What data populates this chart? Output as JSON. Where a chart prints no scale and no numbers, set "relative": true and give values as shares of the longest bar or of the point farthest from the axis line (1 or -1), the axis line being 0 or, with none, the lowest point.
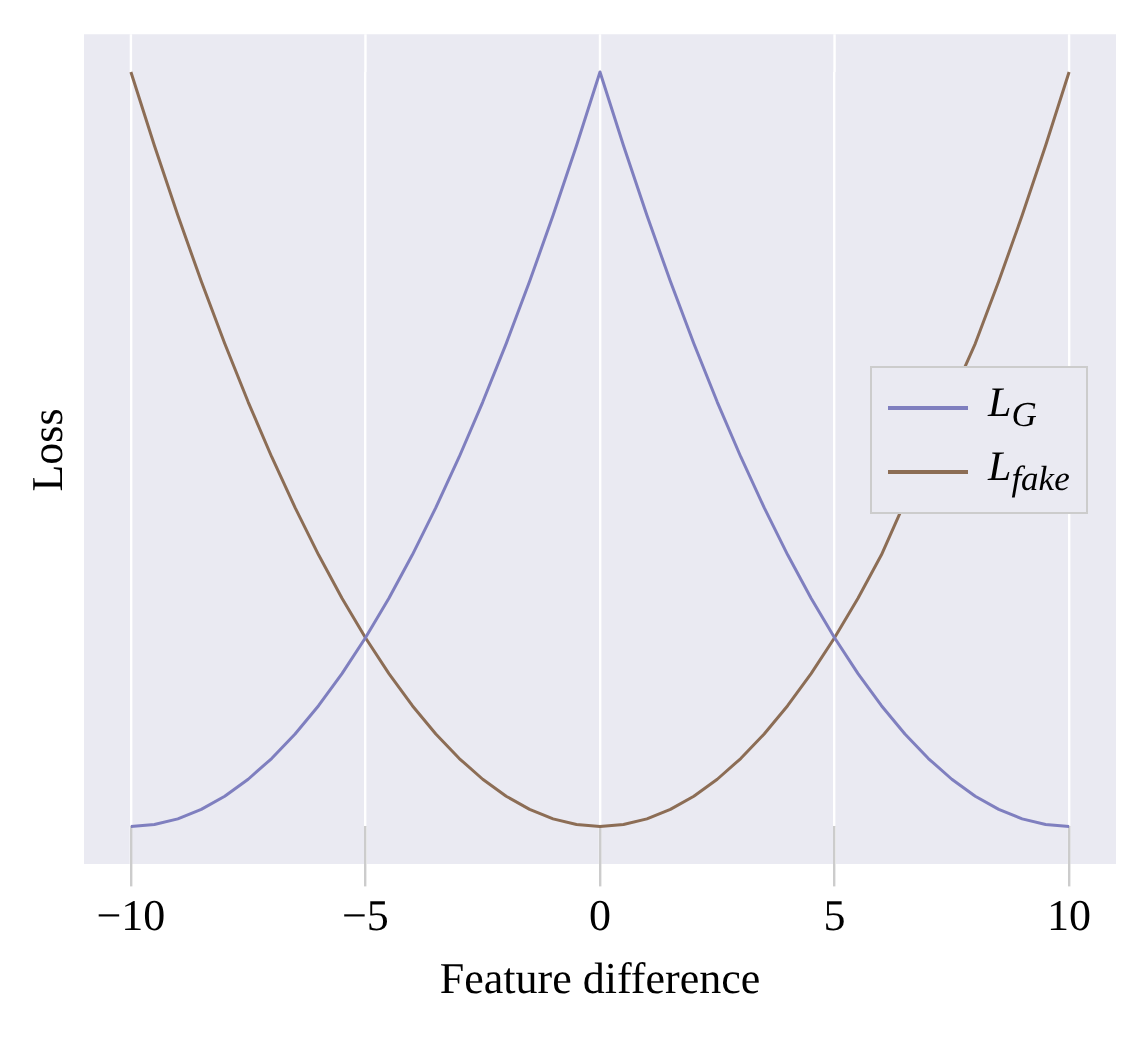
{
  "chart_data": {
    "type": "line",
    "xlabel": "Feature difference",
    "ylabel": "Loss",
    "relative": true,
    "grid": "x",
    "legend": "right",
    "marker": "none",
    "line_style": "solid",
    "x": [
      -10,
      -9.5,
      -9,
      -8.5,
      -8,
      -7.5,
      -7,
      -6.5,
      -6,
      -5.5,
      -5,
      -4.5,
      -4,
      -3.5,
      -3,
      -2.5,
      -2,
      -1.5,
      -1,
      -0.5,
      0,
      0.5,
      1,
      1.5,
      2,
      2.5,
      3,
      3.5,
      4,
      4.5,
      5,
      5.5,
      6,
      6.5,
      7,
      7.5,
      8,
      8.5,
      9,
      9.5,
      10
    ],
    "xlim": [
      -11,
      11
    ],
    "xticks": [
      {
        "value": -10,
        "label": "−10"
      },
      {
        "value": -5,
        "label": "−5"
      },
      0,
      5,
      10
    ],
    "series": [
      {
        "name": "L$_{G}$",
        "color": "#7f7fbf",
        "values": [
          0,
          0.0025,
          0.01,
          0.0225,
          0.04,
          0.0625,
          0.09,
          0.1225,
          0.16,
          0.2025,
          0.25,
          0.3025,
          0.36,
          0.4225,
          0.49,
          0.5625,
          0.64,
          0.7225,
          0.81,
          0.9025,
          1,
          0.9025,
          0.81,
          0.7225,
          0.64,
          0.5625,
          0.49,
          0.4225,
          0.36,
          0.3025,
          0.25,
          0.2025,
          0.16,
          0.1225,
          0.09,
          0.0625,
          0.04,
          0.0225,
          0.01,
          0.0025,
          0
        ]
      },
      {
        "name": "L$_{fake}$",
        "color": "#8c6d55",
        "values": [
          1,
          0.9025,
          0.81,
          0.7225,
          0.64,
          0.5625,
          0.49,
          0.4225,
          0.36,
          0.3025,
          0.25,
          0.2025,
          0.16,
          0.1225,
          0.09,
          0.0625,
          0.04,
          0.0225,
          0.01,
          0.0025,
          0,
          0.0025,
          0.01,
          0.0225,
          0.04,
          0.0625,
          0.09,
          0.1225,
          0.16,
          0.2025,
          0.25,
          0.3025,
          0.36,
          null,
          null,
          null,
          0.64,
          0.7225,
          0.81,
          0.9025,
          1
        ]
      }
    ]
  }
}
